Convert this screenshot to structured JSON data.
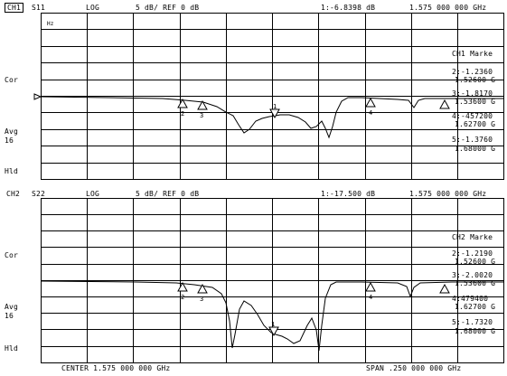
{
  "ch1": {
    "channel": "CH1",
    "param": "S11",
    "format": "LOG",
    "scale": "5 dB/ REF 0 dB",
    "marker_readout": "1:-6.8398 dB",
    "marker_freq": "1.575 000 000 GHz",
    "corner_symbol": "Hz",
    "side_cor": "Cor",
    "side_avg": "Avg",
    "side_avg_n": "16",
    "side_hld": "Hld",
    "marker_title": "CH1 Marke",
    "markers": [
      {
        "id": "2",
        "val": "2:-1.2360",
        "freq": "1.52600 G"
      },
      {
        "id": "3",
        "val": "3:-1.8170",
        "freq": "1.53600 G"
      },
      {
        "id": "4",
        "val": "4:-457200",
        "freq": "1.62700 G"
      },
      {
        "id": "5",
        "val": "5:-1.3760",
        "freq": "1.68000 G"
      }
    ]
  },
  "ch2": {
    "channel": "CH2",
    "param": "S22",
    "format": "LOG",
    "scale": "5 dB/ REF 0 dB",
    "marker_readout": "1:-17.500 dB",
    "marker_freq": "1.575 000 000 GHz",
    "side_cor": "Cor",
    "side_avg": "Avg",
    "side_avg_n": "16",
    "side_hld": "Hld",
    "marker_title": "CH2 Marke",
    "markers": [
      {
        "id": "2",
        "val": "2:-1.2190",
        "freq": "1.52600 G"
      },
      {
        "id": "3",
        "val": "3:-2.0020",
        "freq": "1.53600 G"
      },
      {
        "id": "4",
        "val": "4:479400",
        "freq": "1.62700 G"
      },
      {
        "id": "5",
        "val": "5:-1.7320",
        "freq": "1.68000 G"
      }
    ]
  },
  "footer": {
    "center": "CENTER 1.575 000 000 GHz",
    "span": "SPAN .250 000 000 GHz"
  },
  "colors": {
    "ink": "#000000",
    "background": "#ffffff"
  }
}
